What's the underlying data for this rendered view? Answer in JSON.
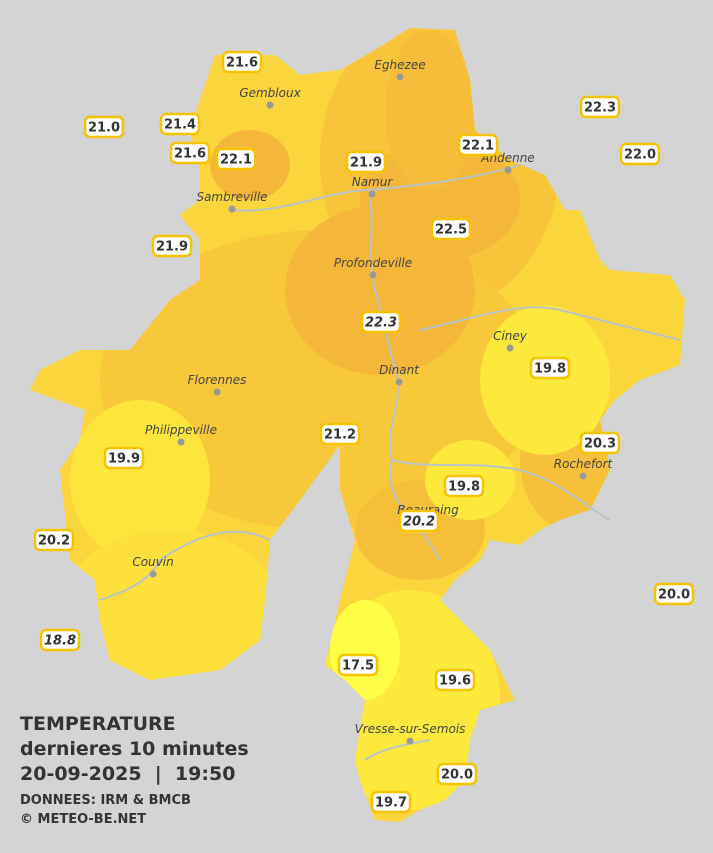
{
  "title": {
    "line1": "TEMPERATURE",
    "line2": "dernieres 10 minutes",
    "line3": "20-09-2025  |  19:50",
    "line4": "DONNEES: IRM & BMCB",
    "line5": "© METEO-BE.NET"
  },
  "towns": [
    "Eghezee",
    "Gembloux",
    "Andenne",
    "Namur",
    "Sambreville",
    "Profondeville",
    "Ciney",
    "Dinant",
    "Florennes",
    "Philippeville",
    "Rochefort",
    "Beauraing",
    "Couvin",
    "Vresse-sur-Semois"
  ],
  "stations": [
    {
      "text": "21.6"
    },
    {
      "text": "21.0"
    },
    {
      "text": "21.4"
    },
    {
      "text": "21.6"
    },
    {
      "text": "22.1"
    },
    {
      "text": "21.9"
    },
    {
      "text": "22.1"
    },
    {
      "text": "22.3"
    },
    {
      "text": "22.0"
    },
    {
      "text": "22.5"
    },
    {
      "text": "21.9"
    },
    {
      "text": "22.3",
      "italic": true
    },
    {
      "text": "19.8"
    },
    {
      "text": "21.2"
    },
    {
      "text": "20.3"
    },
    {
      "text": "19.9"
    },
    {
      "text": "19.8"
    },
    {
      "text": "20.2",
      "italic": true
    },
    {
      "text": "20.2"
    },
    {
      "text": "20.0"
    },
    {
      "text": "18.8",
      "italic": true
    },
    {
      "text": "17.5"
    },
    {
      "text": "19.6"
    },
    {
      "text": "20.0"
    },
    {
      "text": "19.7"
    }
  ]
}
